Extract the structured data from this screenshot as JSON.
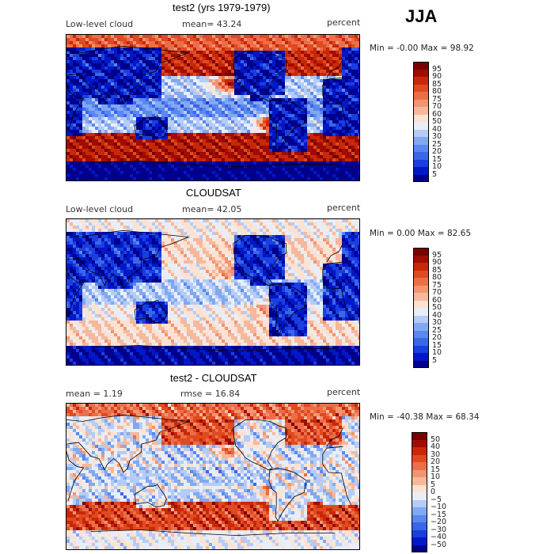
{
  "season": "JJA",
  "panels": [
    {
      "id": "model",
      "title": "test2 (yrs 1979-1979)",
      "left_label": "Low-level cloud",
      "center_label": "mean=  43.24",
      "units": "percent",
      "min_max": "Min =  -0.00 Max =  98.92",
      "colorbar": [
        "95",
        "90",
        "85",
        "80",
        "75",
        "70",
        "60",
        "50",
        "40",
        "30",
        "25",
        "20",
        "15",
        "10",
        "5"
      ]
    },
    {
      "id": "obs",
      "title": "CLOUDSAT",
      "left_label": "Low-level cloud",
      "center_label": "mean=  42.05",
      "units": "percent",
      "min_max": "Min =   0.00 Max =  82.65",
      "colorbar": [
        "95",
        "90",
        "85",
        "80",
        "75",
        "70",
        "60",
        "50",
        "40",
        "30",
        "25",
        "20",
        "15",
        "10",
        "5"
      ]
    },
    {
      "id": "diff",
      "title": "test2 - CLOUDSAT",
      "left_label": "mean =   1.19",
      "center_label": "rmse =  16.84",
      "units": "percent",
      "min_max": "Min = -40.38 Max =  68.34",
      "colorbar": [
        "50",
        "40",
        "30",
        "20",
        "15",
        "10",
        "5",
        "0",
        "−5",
        "−10",
        "−15",
        "−20",
        "−30",
        "−40",
        "−50"
      ]
    }
  ],
  "palette": [
    "#00008b",
    "#0018c8",
    "#1a3ee0",
    "#3a66e8",
    "#5a88ee",
    "#82a8f2",
    "#b4ccf6",
    "#e8eef8",
    "#fbe2d2",
    "#f7b89a",
    "#f29472",
    "#ec6e48",
    "#e04a20",
    "#c82808",
    "#a00c00",
    "#7a0000"
  ],
  "chart_data": [
    {
      "type": "heatmap",
      "title": "test2 (yrs 1979-1979)",
      "variable": "Low-level cloud",
      "units": "percent",
      "mean": 43.24,
      "min": -0.0,
      "max": 98.92,
      "contour_levels": [
        5,
        10,
        15,
        20,
        25,
        30,
        40,
        50,
        60,
        70,
        75,
        80,
        85,
        90,
        95
      ]
    },
    {
      "type": "heatmap",
      "title": "CLOUDSAT",
      "variable": "Low-level cloud",
      "units": "percent",
      "mean": 42.05,
      "min": 0.0,
      "max": 82.65,
      "contour_levels": [
        5,
        10,
        15,
        20,
        25,
        30,
        40,
        50,
        60,
        70,
        75,
        80,
        85,
        90,
        95
      ]
    },
    {
      "type": "heatmap",
      "title": "test2 - CLOUDSAT",
      "units": "percent",
      "mean": 1.19,
      "rmse": 16.84,
      "min": -40.38,
      "max": 68.34,
      "contour_levels": [
        -50,
        -40,
        -30,
        -20,
        -15,
        -10,
        -5,
        0,
        5,
        10,
        15,
        20,
        30,
        40,
        50
      ]
    }
  ]
}
